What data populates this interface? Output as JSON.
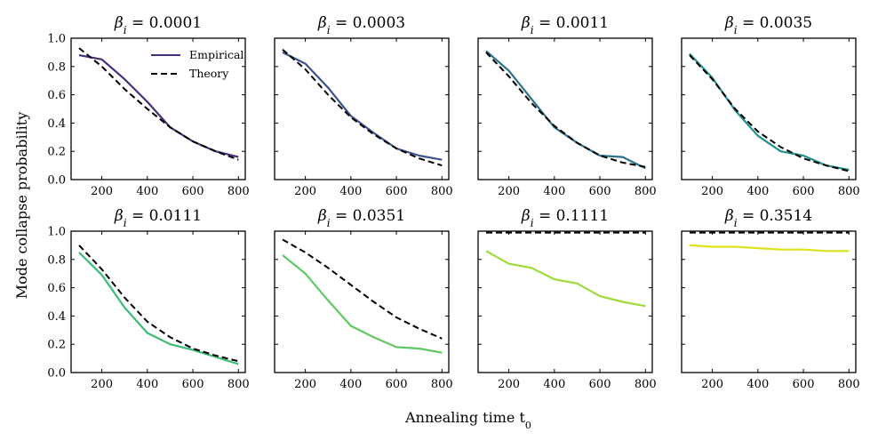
{
  "figure": {
    "ylabel": "Mode collapse probability",
    "xlabel": "Annealing time t",
    "xlabel_subscript": "0"
  },
  "legend": {
    "empirical": "Empirical",
    "theory": "Theory",
    "location": "top-right of first panel"
  },
  "chart_data": [
    {
      "type": "line",
      "title_symbol": "β",
      "title_subscript": "i",
      "title_value": " = 0.0001",
      "title": "β_i = 0.0001",
      "color": "#472d7b",
      "x": [
        100,
        200,
        300,
        400,
        500,
        600,
        700,
        800
      ],
      "series": [
        {
          "name": "Empirical",
          "values": [
            0.88,
            0.85,
            0.71,
            0.55,
            0.37,
            0.27,
            0.2,
            0.16
          ]
        },
        {
          "name": "Theory",
          "values": [
            0.93,
            0.8,
            0.64,
            0.5,
            0.37,
            0.27,
            0.2,
            0.14
          ]
        }
      ],
      "xlim": [
        65,
        830
      ],
      "ylim": [
        0,
        1.0
      ],
      "xticks": [
        200,
        400,
        600,
        800
      ],
      "yticks": [
        0.0,
        0.2,
        0.4,
        0.6,
        0.8,
        1.0
      ],
      "xticklabels": [
        "200",
        "400",
        "600",
        "800"
      ],
      "yticklabels": [
        "0.0",
        "0.2",
        "0.4",
        "0.6",
        "0.8",
        "1.0"
      ]
    },
    {
      "type": "line",
      "title_symbol": "β",
      "title_subscript": "i",
      "title_value": " = 0.0003",
      "title": "β_i = 0.0003",
      "color": "#3b528b",
      "x": [
        100,
        200,
        300,
        400,
        500,
        600,
        700,
        800
      ],
      "series": [
        {
          "name": "Empirical",
          "values": [
            0.9,
            0.82,
            0.65,
            0.45,
            0.33,
            0.22,
            0.17,
            0.14
          ]
        },
        {
          "name": "Theory",
          "values": [
            0.92,
            0.78,
            0.6,
            0.44,
            0.32,
            0.22,
            0.15,
            0.1
          ]
        }
      ],
      "xlim": [
        65,
        830
      ],
      "ylim": [
        0,
        1.0
      ],
      "xticks": [
        200,
        400,
        600,
        800
      ],
      "yticks": [
        0.0,
        0.2,
        0.4,
        0.6,
        0.8,
        1.0
      ],
      "xticklabels": [
        "200",
        "400",
        "600",
        "800"
      ],
      "yticklabels": []
    },
    {
      "type": "line",
      "title_symbol": "β",
      "title_subscript": "i",
      "title_value": " = 0.0011",
      "title": "β_i = 0.0011",
      "color": "#2c728e",
      "x": [
        100,
        200,
        300,
        400,
        500,
        600,
        700,
        800
      ],
      "series": [
        {
          "name": "Empirical",
          "values": [
            0.91,
            0.77,
            0.57,
            0.37,
            0.26,
            0.17,
            0.16,
            0.08
          ]
        },
        {
          "name": "Theory",
          "values": [
            0.9,
            0.73,
            0.54,
            0.38,
            0.26,
            0.17,
            0.12,
            0.09
          ]
        }
      ],
      "xlim": [
        65,
        830
      ],
      "ylim": [
        0,
        1.0
      ],
      "xticks": [
        200,
        400,
        600,
        800
      ],
      "yticks": [
        0.0,
        0.2,
        0.4,
        0.6,
        0.8,
        1.0
      ],
      "xticklabels": [
        "200",
        "400",
        "600",
        "800"
      ],
      "yticklabels": []
    },
    {
      "type": "line",
      "title_symbol": "β",
      "title_subscript": "i",
      "title_value": " = 0.0035",
      "title": "β_i = 0.0035",
      "color": "#21918c",
      "x": [
        100,
        200,
        300,
        400,
        500,
        600,
        700,
        800
      ],
      "series": [
        {
          "name": "Empirical",
          "values": [
            0.89,
            0.72,
            0.49,
            0.31,
            0.2,
            0.17,
            0.1,
            0.07
          ]
        },
        {
          "name": "Theory",
          "values": [
            0.88,
            0.71,
            0.5,
            0.34,
            0.23,
            0.15,
            0.1,
            0.06
          ]
        }
      ],
      "xlim": [
        65,
        830
      ],
      "ylim": [
        0,
        1.0
      ],
      "xticks": [
        200,
        400,
        600,
        800
      ],
      "yticks": [
        0.0,
        0.2,
        0.4,
        0.6,
        0.8,
        1.0
      ],
      "xticklabels": [
        "200",
        "400",
        "600",
        "800"
      ],
      "yticklabels": []
    },
    {
      "type": "line",
      "title_symbol": "β",
      "title_subscript": "i",
      "title_value": " = 0.0111",
      "title": "β_i = 0.0111",
      "color": "#3bbb75",
      "x": [
        100,
        200,
        300,
        400,
        500,
        600,
        700,
        800
      ],
      "series": [
        {
          "name": "Empirical",
          "values": [
            0.85,
            0.69,
            0.46,
            0.28,
            0.2,
            0.16,
            0.11,
            0.06
          ]
        },
        {
          "name": "Theory",
          "values": [
            0.9,
            0.73,
            0.53,
            0.36,
            0.25,
            0.17,
            0.12,
            0.08
          ]
        }
      ],
      "xlim": [
        65,
        830
      ],
      "ylim": [
        0,
        1.0
      ],
      "xticks": [
        200,
        400,
        600,
        800
      ],
      "yticks": [
        0.0,
        0.2,
        0.4,
        0.6,
        0.8,
        1.0
      ],
      "xticklabels": [
        "200",
        "400",
        "600",
        "800"
      ],
      "yticklabels": [
        "0.0",
        "0.2",
        "0.4",
        "0.6",
        "0.8",
        "1.0"
      ]
    },
    {
      "type": "line",
      "title_symbol": "β",
      "title_subscript": "i",
      "title_value": " = 0.0351",
      "title": "β_i = 0.0351",
      "color": "#5ec962",
      "x": [
        100,
        200,
        300,
        400,
        500,
        600,
        700,
        800
      ],
      "series": [
        {
          "name": "Empirical",
          "values": [
            0.83,
            0.7,
            0.51,
            0.33,
            0.25,
            0.18,
            0.17,
            0.14
          ]
        },
        {
          "name": "Theory",
          "values": [
            0.94,
            0.85,
            0.74,
            0.62,
            0.5,
            0.39,
            0.31,
            0.24
          ]
        }
      ],
      "xlim": [
        65,
        830
      ],
      "ylim": [
        0,
        1.0
      ],
      "xticks": [
        200,
        400,
        600,
        800
      ],
      "yticks": [
        0.0,
        0.2,
        0.4,
        0.6,
        0.8,
        1.0
      ],
      "xticklabels": [
        "200",
        "400",
        "600",
        "800"
      ],
      "yticklabels": []
    },
    {
      "type": "line",
      "title_symbol": "β",
      "title_subscript": "i",
      "title_value": " = 0.1111",
      "title": "β_i = 0.1111",
      "color": "#a0da39",
      "x": [
        100,
        200,
        300,
        400,
        500,
        600,
        700,
        800
      ],
      "series": [
        {
          "name": "Empirical",
          "values": [
            0.86,
            0.77,
            0.74,
            0.66,
            0.63,
            0.54,
            0.5,
            0.47
          ]
        },
        {
          "name": "Theory",
          "values": [
            0.99,
            0.99,
            0.99,
            0.99,
            0.99,
            0.99,
            0.99,
            0.99
          ]
        }
      ],
      "xlim": [
        65,
        830
      ],
      "ylim": [
        0,
        1.0
      ],
      "xticks": [
        200,
        400,
        600,
        800
      ],
      "yticks": [
        0.0,
        0.2,
        0.4,
        0.6,
        0.8,
        1.0
      ],
      "xticklabels": [
        "200",
        "400",
        "600",
        "800"
      ],
      "yticklabels": []
    },
    {
      "type": "line",
      "title_symbol": "β",
      "title_subscript": "i",
      "title_value": " = 0.3514",
      "title": "β_i = 0.3514",
      "color": "#dde318",
      "x": [
        100,
        200,
        300,
        400,
        500,
        600,
        700,
        800
      ],
      "series": [
        {
          "name": "Empirical",
          "values": [
            0.9,
            0.89,
            0.89,
            0.88,
            0.87,
            0.87,
            0.86,
            0.86
          ]
        },
        {
          "name": "Theory",
          "values": [
            0.99,
            0.99,
            0.99,
            0.99,
            0.99,
            0.99,
            0.99,
            0.99
          ]
        }
      ],
      "xlim": [
        65,
        830
      ],
      "ylim": [
        0,
        1.0
      ],
      "xticks": [
        200,
        400,
        600,
        800
      ],
      "yticks": [
        0.0,
        0.2,
        0.4,
        0.6,
        0.8,
        1.0
      ],
      "xticklabels": [
        "200",
        "400",
        "600",
        "800"
      ],
      "yticklabels": []
    }
  ]
}
